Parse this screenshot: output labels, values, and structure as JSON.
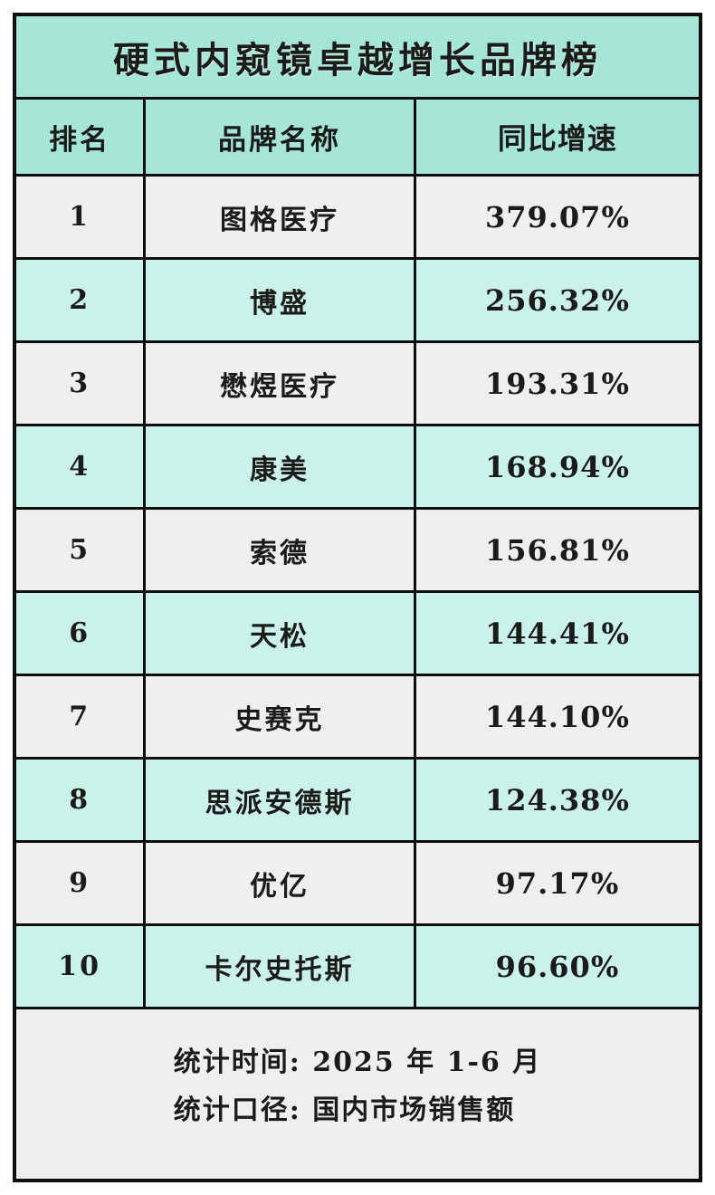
{
  "colors": {
    "band_teal": "#a6e6d7",
    "row_cyan": "#cbf2ea",
    "row_gray": "#f0efed",
    "footer_gray": "#efefee",
    "border": "#0e0e0e",
    "text": "#1b1b1b"
  },
  "chart_data": {
    "type": "table",
    "title": "硬式内窥镜卓越增长品牌榜",
    "columns": [
      "排名",
      "品牌名称",
      "同比增速"
    ],
    "rows": [
      {
        "rank": "1",
        "brand": "图格医疗",
        "growth": "379.07%"
      },
      {
        "rank": "2",
        "brand": "博盛",
        "growth": "256.32%"
      },
      {
        "rank": "3",
        "brand": "懋煜医疗",
        "growth": "193.31%"
      },
      {
        "rank": "4",
        "brand": "康美",
        "growth": "168.94%"
      },
      {
        "rank": "5",
        "brand": "索德",
        "growth": "156.81%"
      },
      {
        "rank": "6",
        "brand": "天松",
        "growth": "144.41%"
      },
      {
        "rank": "7",
        "brand": "史赛克",
        "growth": "144.10%"
      },
      {
        "rank": "8",
        "brand": "思派安德斯",
        "growth": "124.38%"
      },
      {
        "rank": "9",
        "brand": "优亿",
        "growth": "97.17%"
      },
      {
        "rank": "10",
        "brand": "卡尔史托斯",
        "growth": "96.60%"
      }
    ],
    "footer": {
      "line1": "统计时间: 2025 年 1-6 月",
      "line2": "统计口径: 国内市场销售额"
    }
  }
}
